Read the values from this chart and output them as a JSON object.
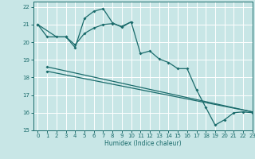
{
  "xlabel": "Humidex (Indice chaleur)",
  "xlim": [
    -0.5,
    23
  ],
  "ylim": [
    15,
    22.3
  ],
  "yticks": [
    15,
    16,
    17,
    18,
    19,
    20,
    21,
    22
  ],
  "xticks": [
    0,
    1,
    2,
    3,
    4,
    5,
    6,
    7,
    8,
    9,
    10,
    11,
    12,
    13,
    14,
    15,
    16,
    17,
    18,
    19,
    20,
    21,
    22,
    23
  ],
  "bg_color": "#c8e6e6",
  "grid_color": "#ffffff",
  "line_color": "#1a6b6b",
  "series1_x": [
    0,
    1,
    3,
    4,
    5,
    6,
    7,
    8,
    9,
    10,
    11,
    12,
    13,
    14,
    15,
    16,
    17,
    18,
    19,
    20,
    21,
    22,
    23
  ],
  "series1_y": [
    21.0,
    20.3,
    20.3,
    19.7,
    21.35,
    21.75,
    21.9,
    21.1,
    20.85,
    21.15,
    19.35,
    19.5,
    19.05,
    18.85,
    18.5,
    18.5,
    17.3,
    16.3,
    15.3,
    15.6,
    16.0,
    16.05,
    16.0
  ],
  "series2_x": [
    0,
    2,
    3,
    4,
    5,
    6,
    7,
    8,
    9,
    10
  ],
  "series2_y": [
    21.0,
    20.3,
    20.3,
    19.85,
    20.5,
    20.8,
    21.0,
    21.05,
    20.9,
    21.15
  ],
  "series3_x": [
    1,
    23
  ],
  "series3_y": [
    18.6,
    16.05
  ],
  "series4_x": [
    1,
    23
  ],
  "series4_y": [
    18.35,
    16.05
  ]
}
